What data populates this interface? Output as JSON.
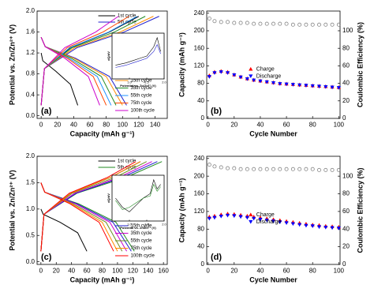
{
  "chart_data": [
    {
      "type": "line",
      "panel_label": "(a)",
      "x_label": "Capacity (mAh g⁻¹)",
      "y_label": "Potential vs. Zn/Zn²⁺ (V)",
      "xlim": [
        -5,
        155
      ],
      "xticks": [
        0,
        20,
        40,
        60,
        80,
        100,
        120,
        140
      ],
      "ylim": [
        -0.05,
        2.0
      ],
      "yticks": [
        {
          "value": 0,
          "label": "0.0"
        },
        0.4,
        0.8,
        1.2,
        1.6,
        {
          "value": 2,
          "label": "2.0"
        }
      ],
      "series": [
        {
          "name": "1st cycle",
          "color": "#000000",
          "x": [
            0,
            2,
            18,
            36,
            45,
            null,
            0,
            4,
            36,
            84,
            120
          ],
          "values": [
            1.2,
            1.05,
            0.85,
            0.6,
            0.2,
            null,
            0.2,
            0.9,
            1.3,
            1.6,
            1.9
          ]
        },
        {
          "name": "5th cycle",
          "color": "#1f1fcc",
          "x": [
            0,
            5,
            42,
            84,
            105,
            null,
            0,
            4,
            44,
            102,
            145
          ],
          "values": [
            1.5,
            1.32,
            1.1,
            0.75,
            0.2,
            null,
            0.2,
            0.9,
            1.3,
            1.6,
            1.9
          ]
        },
        {
          "name": "15th cycle",
          "color": "#ff8c00",
          "x": [
            0,
            5,
            40,
            80,
            100,
            null,
            0,
            4,
            41,
            97,
            138
          ],
          "values": [
            1.5,
            1.32,
            1.1,
            0.75,
            0.2,
            null,
            0.2,
            0.9,
            1.3,
            1.6,
            1.9
          ]
        },
        {
          "name": "35th cycle",
          "color": "#228b22",
          "x": [
            0,
            5,
            37,
            74,
            92,
            null,
            0,
            4,
            38,
            90,
            128
          ],
          "values": [
            1.5,
            1.32,
            1.1,
            0.75,
            0.2,
            null,
            0.2,
            0.9,
            1.3,
            1.6,
            1.9
          ]
        },
        {
          "name": "55th cycle",
          "color": "#1e90ff",
          "x": [
            0,
            5,
            34,
            69,
            86,
            null,
            0,
            4,
            35,
            83,
            118
          ],
          "values": [
            1.5,
            1.32,
            1.1,
            0.75,
            0.2,
            null,
            0.2,
            0.9,
            1.3,
            1.6,
            1.9
          ]
        },
        {
          "name": "75th cycle",
          "color": "#ff4500",
          "x": [
            0,
            5,
            32,
            64,
            80,
            null,
            0,
            4,
            32,
            76,
            108
          ],
          "values": [
            1.5,
            1.32,
            1.1,
            0.75,
            0.2,
            null,
            0.2,
            0.9,
            1.3,
            1.6,
            1.9
          ]
        },
        {
          "name": "100th cycle",
          "color": "#cc00cc",
          "x": [
            0,
            5,
            29,
            58,
            72,
            null,
            0,
            4,
            29,
            67,
            95
          ],
          "values": [
            1.5,
            1.32,
            1.1,
            0.75,
            0.2,
            null,
            0.2,
            0.9,
            1.3,
            1.6,
            1.9
          ]
        }
      ]
    },
    {
      "type": "scatter",
      "panel_label": "(b)",
      "x_label": "Cycle Number",
      "y_label": "Capacity (mAh g⁻¹)",
      "y2_label": "Coulombic Efficiency (%)",
      "xlim": [
        -1,
        101
      ],
      "xticks": [
        0,
        20,
        40,
        60,
        80,
        100
      ],
      "ylim": [
        0,
        245
      ],
      "yticks": [
        0,
        40,
        80,
        120,
        160,
        200,
        240
      ],
      "y2lim": [
        0,
        122.5
      ],
      "y2ticks": [
        0,
        20,
        40,
        60,
        80,
        100
      ],
      "x": [
        1,
        5,
        10,
        15,
        20,
        25,
        30,
        35,
        40,
        45,
        50,
        55,
        60,
        65,
        70,
        75,
        80,
        85,
        90,
        95,
        100
      ],
      "series": [
        {
          "name": "Charge",
          "color": "#ff0000",
          "marker": "triangle-up",
          "values": [
            98,
            106,
            108,
            106,
            100,
            95,
            91,
            88,
            86,
            84,
            82,
            80,
            79,
            78,
            77,
            76,
            75,
            74,
            73,
            72,
            71
          ]
        },
        {
          "name": "Discharge",
          "color": "#0000ff",
          "marker": "triangle-down",
          "values": [
            95,
            104,
            106,
            104,
            99,
            94,
            90,
            87,
            85,
            83,
            81,
            79,
            78,
            77,
            76,
            75,
            74,
            73,
            72,
            71,
            70
          ]
        },
        {
          "color": "#777777",
          "marker": "circle-open",
          "axis": "y2",
          "values": [
            114,
            111,
            110,
            110,
            109,
            109,
            109,
            108,
            108,
            108,
            108,
            108,
            108,
            107,
            107,
            107,
            107,
            107,
            107,
            107,
            107
          ]
        }
      ]
    },
    {
      "type": "line",
      "panel_label": "(c)",
      "x_label": "Capacity (mAh g⁻¹)",
      "y_label": "Potential vs. Zn/Zn²⁺ (V)",
      "xlim": [
        -5,
        165
      ],
      "xticks": [
        0,
        20,
        40,
        60,
        80,
        100,
        120,
        140,
        160
      ],
      "ylim": [
        -0.05,
        2.0
      ],
      "yticks": [
        {
          "value": 0,
          "label": "0.0"
        },
        0.5,
        {
          "value": 1,
          "label": "1.0"
        },
        1.5,
        {
          "value": 2,
          "label": "2.0"
        }
      ],
      "series": [
        {
          "name": "1st cycle",
          "color": "#000000",
          "x": [
            0,
            3,
            25,
            48,
            60,
            null,
            0,
            4,
            39,
            91,
            130
          ],
          "values": [
            1.0,
            0.9,
            0.75,
            0.55,
            0.2,
            null,
            0.2,
            0.9,
            1.3,
            1.6,
            1.9
          ]
        },
        {
          "name": "5th cycle",
          "color": "#228b22",
          "x": [
            0,
            5,
            49,
            98,
            122,
            null,
            0,
            4,
            47,
            111,
            158
          ],
          "values": [
            1.5,
            1.32,
            1.1,
            0.75,
            0.2,
            null,
            0.2,
            0.9,
            1.3,
            1.6,
            1.9
          ]
        },
        {
          "name": "15th cycle",
          "color": "#1f1fcc",
          "x": [
            0,
            5,
            47,
            94,
            118,
            null,
            0,
            4,
            46,
            106,
            152
          ],
          "values": [
            1.5,
            1.32,
            1.1,
            0.75,
            0.2,
            null,
            0.2,
            0.9,
            1.3,
            1.6,
            1.9
          ]
        },
        {
          "name": "35th cycle",
          "color": "#cc00cc",
          "x": [
            0,
            5,
            45,
            90,
            112,
            null,
            0,
            4,
            44,
            102,
            145
          ],
          "values": [
            1.5,
            1.32,
            1.1,
            0.75,
            0.2,
            null,
            0.2,
            0.9,
            1.3,
            1.6,
            1.9
          ]
        },
        {
          "name": "55th cycle",
          "color": "#6b8e23",
          "x": [
            0,
            5,
            42,
            85,
            106,
            null,
            0,
            4,
            41,
            97,
            138
          ],
          "values": [
            1.5,
            1.32,
            1.1,
            0.75,
            0.2,
            null,
            0.2,
            0.9,
            1.3,
            1.6,
            1.9
          ]
        },
        {
          "name": "75th cycle",
          "color": "#ff8c00",
          "x": [
            0,
            5,
            40,
            80,
            100,
            null,
            0,
            4,
            39,
            91,
            130
          ],
          "values": [
            1.5,
            1.32,
            1.1,
            0.75,
            0.2,
            null,
            0.2,
            0.9,
            1.3,
            1.6,
            1.9
          ]
        },
        {
          "name": "100th cycle",
          "color": "#ff0000",
          "x": [
            0,
            5,
            38,
            76,
            95,
            null,
            0,
            4,
            37,
            87,
            124
          ],
          "values": [
            1.5,
            1.32,
            1.1,
            0.75,
            0.2,
            null,
            0.2,
            0.9,
            1.3,
            1.6,
            1.9
          ]
        }
      ]
    },
    {
      "type": "scatter",
      "panel_label": "(d)",
      "x_label": "Cycle Number",
      "y_label": "Capacity (mAh g⁻¹)",
      "y2_label": "Coulombic Efficiency (%)",
      "xlim": [
        -1,
        101
      ],
      "xticks": [
        0,
        20,
        40,
        60,
        80,
        100
      ],
      "ylim": [
        0,
        245
      ],
      "yticks": [
        0,
        40,
        80,
        120,
        160,
        200,
        240
      ],
      "y2lim": [
        0,
        122.5
      ],
      "y2ticks": [
        0,
        20,
        40,
        60,
        80,
        100
      ],
      "x": [
        1,
        5,
        10,
        15,
        20,
        25,
        30,
        35,
        40,
        45,
        50,
        55,
        60,
        65,
        70,
        75,
        80,
        85,
        90,
        95,
        100
      ],
      "series": [
        {
          "name": "Charge",
          "color": "#ff0000",
          "marker": "triangle-up",
          "values": [
            108,
            110,
            113,
            115,
            114,
            112,
            110,
            108,
            106,
            104,
            102,
            100,
            98,
            96,
            94,
            92,
            90,
            89,
            87,
            86,
            85
          ]
        },
        {
          "name": "Discharge",
          "color": "#0000ff",
          "marker": "triangle-down",
          "values": [
            104,
            106,
            109,
            111,
            110,
            108,
            106,
            104,
            102,
            100,
            98,
            96,
            94,
            92,
            90,
            88,
            87,
            85,
            84,
            83,
            82
          ]
        },
        {
          "color": "#777777",
          "marker": "circle-open",
          "axis": "y2",
          "values": [
            113,
            111,
            110,
            109,
            109,
            108,
            108,
            108,
            108,
            108,
            108,
            108,
            108,
            108,
            108,
            108,
            108,
            107,
            107,
            107,
            107
          ]
        }
      ]
    },
    {
      "type": "line",
      "x_label": "Potential vs. Zn/Zn²⁺ (V)",
      "y_label": "dQ/dV",
      "xlim": [
        0.5,
        2.0
      ],
      "xticks": [
        {
          "value": 1,
          "label": "1.0"
        },
        1.5,
        {
          "value": 2,
          "label": "2.0"
        }
      ],
      "ylim": [
        0,
        1
      ],
      "series": [
        {
          "color": "#000000",
          "x": [
            0.6,
            0.9,
            1.1,
            1.3,
            1.5,
            1.7,
            1.8,
            1.9
          ],
          "values": [
            0.3,
            0.35,
            0.4,
            0.45,
            0.5,
            0.7,
            0.9,
            0.6
          ]
        },
        {
          "color": "#1f1fcc",
          "x": [
            0.6,
            0.9,
            1.1,
            1.3,
            1.5,
            1.7,
            1.8,
            1.9
          ],
          "values": [
            0.25,
            0.3,
            0.35,
            0.4,
            0.45,
            0.6,
            0.75,
            0.55
          ]
        }
      ]
    },
    {
      "type": "line",
      "x_label": "Potential vs. Zn/Zn²⁺ (V)",
      "y_label": "dQ/dV",
      "xlim": [
        0.5,
        2.0
      ],
      "xticks": [
        {
          "value": 1,
          "label": "1.0"
        },
        1.5,
        {
          "value": 2,
          "label": "2.0"
        }
      ],
      "ylim": [
        0,
        1
      ],
      "series": [
        {
          "color": "#000000",
          "x": [
            0.6,
            0.8,
            1.0,
            1.2,
            1.4,
            1.6,
            1.7,
            1.8,
            1.9
          ],
          "values": [
            0.5,
            0.3,
            0.2,
            0.35,
            0.5,
            0.6,
            0.9,
            0.7,
            0.8
          ]
        },
        {
          "color": "#228b22",
          "x": [
            0.6,
            0.8,
            1.0,
            1.2,
            1.4,
            1.6,
            1.7,
            1.8,
            1.9
          ],
          "values": [
            0.45,
            0.25,
            0.3,
            0.4,
            0.5,
            0.55,
            0.8,
            0.65,
            0.75
          ]
        }
      ]
    }
  ]
}
